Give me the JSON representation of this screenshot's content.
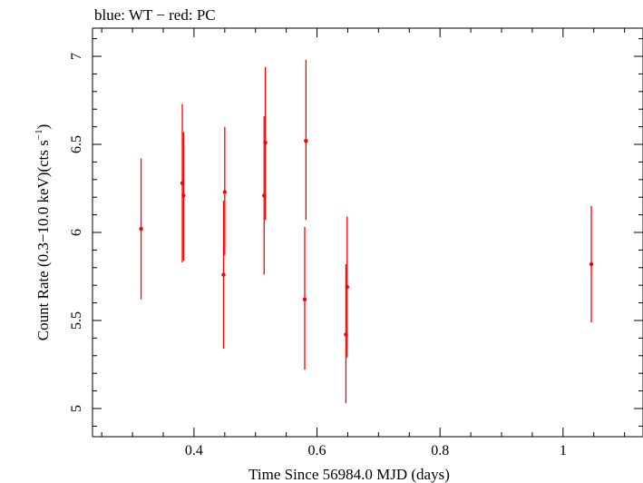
{
  "chart_data": {
    "type": "scatter",
    "title": "blue: WT − red: PC",
    "xlabel": "Time Since 56984.0 MJD (days)",
    "ylabel_parts": {
      "main": "Count Rate (0.3−10.0 keV)(cts s",
      "sup": "−1",
      "close": ")"
    },
    "xlim": [
      0.235,
      1.13
    ],
    "ylim": [
      4.84,
      7.16
    ],
    "x_ticks": [
      {
        "value": 0.4,
        "label": "0.4"
      },
      {
        "value": 0.6,
        "label": "0.6"
      },
      {
        "value": 0.8,
        "label": "0.8"
      },
      {
        "value": 1.0,
        "label": "1"
      }
    ],
    "y_ticks": [
      {
        "value": 5.0,
        "label": "5"
      },
      {
        "value": 5.5,
        "label": "5.5"
      },
      {
        "value": 6.0,
        "label": "6"
      },
      {
        "value": 6.5,
        "label": "6.5"
      },
      {
        "value": 7.0,
        "label": "7"
      }
    ],
    "x_minor_step": 0.05,
    "y_minor_step": 0.1,
    "series": [
      {
        "name": "PC",
        "color": "#ff0000",
        "points": [
          {
            "x": 0.314,
            "y": 6.02,
            "lo": 5.62,
            "hi": 6.42
          },
          {
            "x": 0.381,
            "y": 6.28,
            "lo": 5.83,
            "hi": 6.73
          },
          {
            "x": 0.383,
            "y": 6.21,
            "lo": 5.84,
            "hi": 6.57
          },
          {
            "x": 0.448,
            "y": 5.76,
            "lo": 5.34,
            "hi": 6.18
          },
          {
            "x": 0.45,
            "y": 6.23,
            "lo": 5.87,
            "hi": 6.6
          },
          {
            "x": 0.514,
            "y": 6.21,
            "lo": 5.76,
            "hi": 6.66
          },
          {
            "x": 0.516,
            "y": 6.51,
            "lo": 6.07,
            "hi": 6.94
          },
          {
            "x": 0.58,
            "y": 5.62,
            "lo": 5.22,
            "hi": 6.03
          },
          {
            "x": 0.582,
            "y": 6.52,
            "lo": 6.07,
            "hi": 6.98
          },
          {
            "x": 0.647,
            "y": 5.42,
            "lo": 5.03,
            "hi": 5.82
          },
          {
            "x": 0.649,
            "y": 5.69,
            "lo": 5.29,
            "hi": 6.09
          },
          {
            "x": 1.046,
            "y": 5.82,
            "lo": 5.49,
            "hi": 6.15
          }
        ]
      }
    ]
  }
}
